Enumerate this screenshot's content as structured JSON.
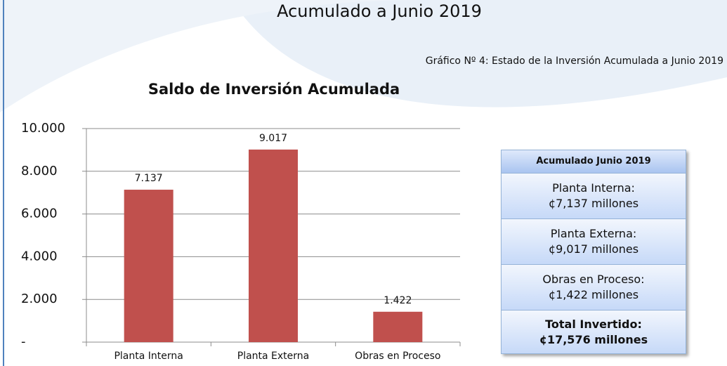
{
  "header": "Acumulado a Junio 2019",
  "caption": "Gráfico Nº 4: Estado de la Inversión Acumulada a Junio 2019",
  "chart_data": {
    "type": "bar",
    "title": "Saldo de Inversión Acumulada",
    "categories": [
      "Planta Interna",
      "Planta Externa",
      "Obras en Proceso"
    ],
    "values": [
      7137,
      9017,
      1422
    ],
    "value_labels": [
      "7.137",
      "9.017",
      "1.422"
    ],
    "color": "#c0504d",
    "ylim": [
      0,
      10000
    ],
    "yticks": [
      {
        "value": 0,
        "label": "-"
      },
      {
        "value": 2000,
        "label": "2.000"
      },
      {
        "value": 4000,
        "label": "4.000"
      },
      {
        "value": 6000,
        "label": "6.000"
      },
      {
        "value": 8000,
        "label": "8.000"
      },
      {
        "value": 10000,
        "label": "10.000"
      }
    ],
    "grid": true
  },
  "summary": {
    "title": "Acumulado Junio 2019",
    "rows": [
      [
        "Planta Interna:",
        "¢7,137 millones"
      ],
      [
        "Planta Externa:",
        "¢9,017 millones"
      ],
      [
        "Obras en Proceso:",
        "¢1,422 millones"
      ]
    ],
    "total": [
      "Total Invertido:",
      "¢17,576 millones"
    ]
  }
}
